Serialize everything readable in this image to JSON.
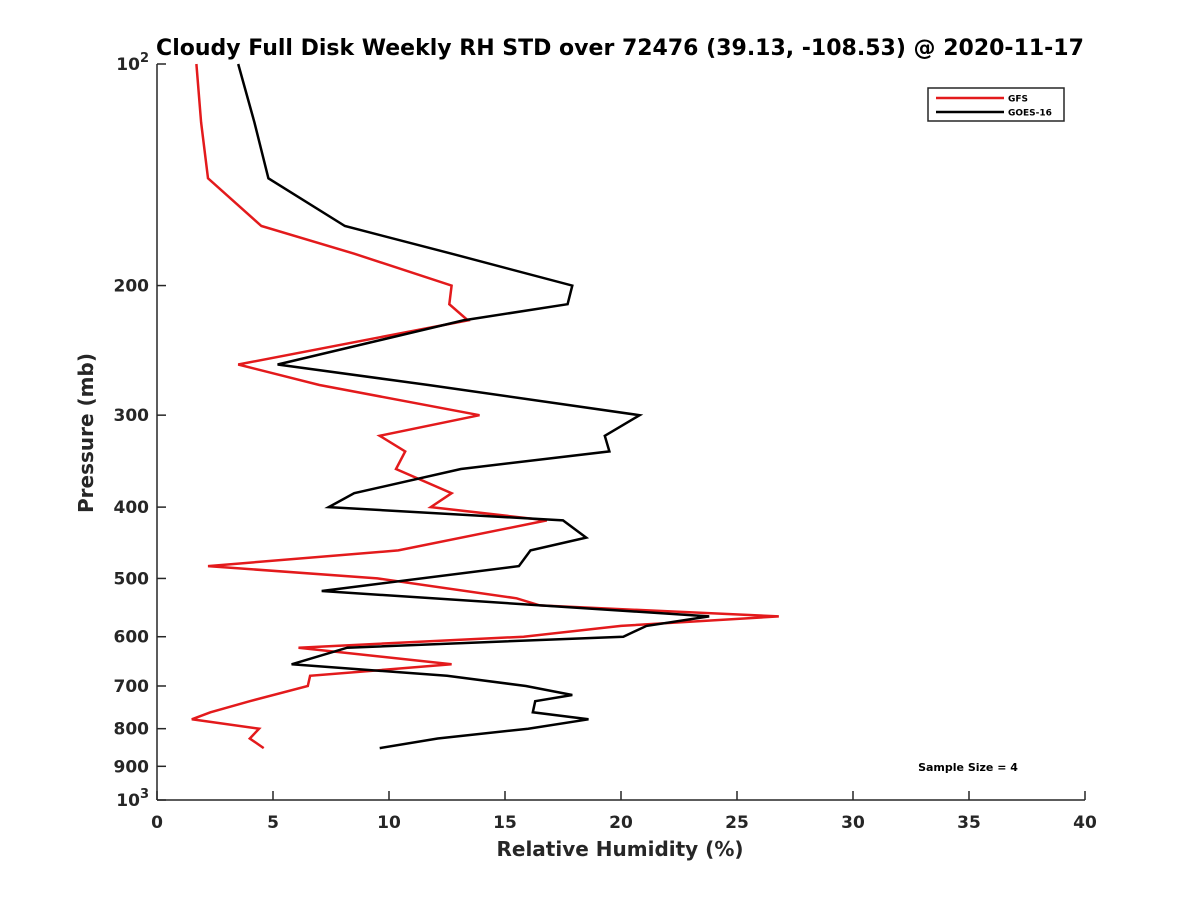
{
  "chart_data": {
    "type": "line",
    "title": "Cloudy Full Disk Weekly RH STD over 72476 (39.13, -108.53) @ 2020-11-17",
    "xlabel": "Relative Humidity (%)",
    "ylabel": "Pressure (mb)",
    "xlim": [
      0,
      40
    ],
    "ylim": [
      100,
      1000
    ],
    "yscale": "log",
    "y_reversed": true,
    "x_ticks": [
      "0",
      "5",
      "10",
      "15",
      "20",
      "25",
      "30",
      "35",
      "40"
    ],
    "y_ticks": [
      {
        "value": 100,
        "label": "10",
        "sup": "2"
      },
      {
        "value": 200,
        "label": "200",
        "sup": ""
      },
      {
        "value": 300,
        "label": "300",
        "sup": ""
      },
      {
        "value": 400,
        "label": "400",
        "sup": ""
      },
      {
        "value": 500,
        "label": "500",
        "sup": ""
      },
      {
        "value": 600,
        "label": "600",
        "sup": ""
      },
      {
        "value": 700,
        "label": "700",
        "sup": ""
      },
      {
        "value": 800,
        "label": "800",
        "sup": ""
      },
      {
        "value": 900,
        "label": "900",
        "sup": ""
      },
      {
        "value": 1000,
        "label": "10",
        "sup": "3"
      }
    ],
    "legend_position": "top-right",
    "annotation": "Sample Size = 4",
    "series": [
      {
        "name": "GFS",
        "color": "#e31a1c",
        "x": [
          1.7,
          1.9,
          2.2,
          4.5,
          8.5,
          12.7,
          12.6,
          13.4,
          3.5,
          7.0,
          13.9,
          9.6,
          10.7,
          10.3,
          12.7,
          11.8,
          16.8,
          10.4,
          2.2,
          9.5,
          15.5,
          16.5,
          26.8,
          20.0,
          15.8,
          6.1,
          12.7,
          6.6,
          6.5,
          4.0,
          2.3,
          1.5,
          4.4,
          4.0,
          4.6
        ],
        "y": [
          100,
          120,
          143,
          166,
          181,
          200,
          212,
          223,
          256,
          273,
          300,
          320,
          336,
          355,
          383,
          400,
          417,
          458,
          481,
          500,
          532,
          544,
          563,
          580,
          600,
          621,
          654,
          678,
          700,
          734,
          760,
          777,
          800,
          825,
          850
        ]
      },
      {
        "name": "GOES-16",
        "color": "#000000",
        "x": [
          3.5,
          4.2,
          4.8,
          8.1,
          12.7,
          17.9,
          17.7,
          13.2,
          5.2,
          11.7,
          20.8,
          19.3,
          19.5,
          13.1,
          8.5,
          7.4,
          17.5,
          18.5,
          16.1,
          15.6,
          7.1,
          23.8,
          21.1,
          20.1,
          8.2,
          5.8,
          12.5,
          15.9,
          17.9,
          16.3,
          16.2,
          18.6,
          16.0,
          12.1,
          9.6
        ],
        "y": [
          100,
          120,
          143,
          166,
          181,
          200,
          212,
          223,
          256,
          273,
          300,
          320,
          336,
          355,
          383,
          400,
          417,
          440,
          458,
          481,
          520,
          563,
          580,
          600,
          621,
          654,
          678,
          700,
          720,
          734,
          760,
          777,
          800,
          825,
          850
        ]
      }
    ]
  }
}
